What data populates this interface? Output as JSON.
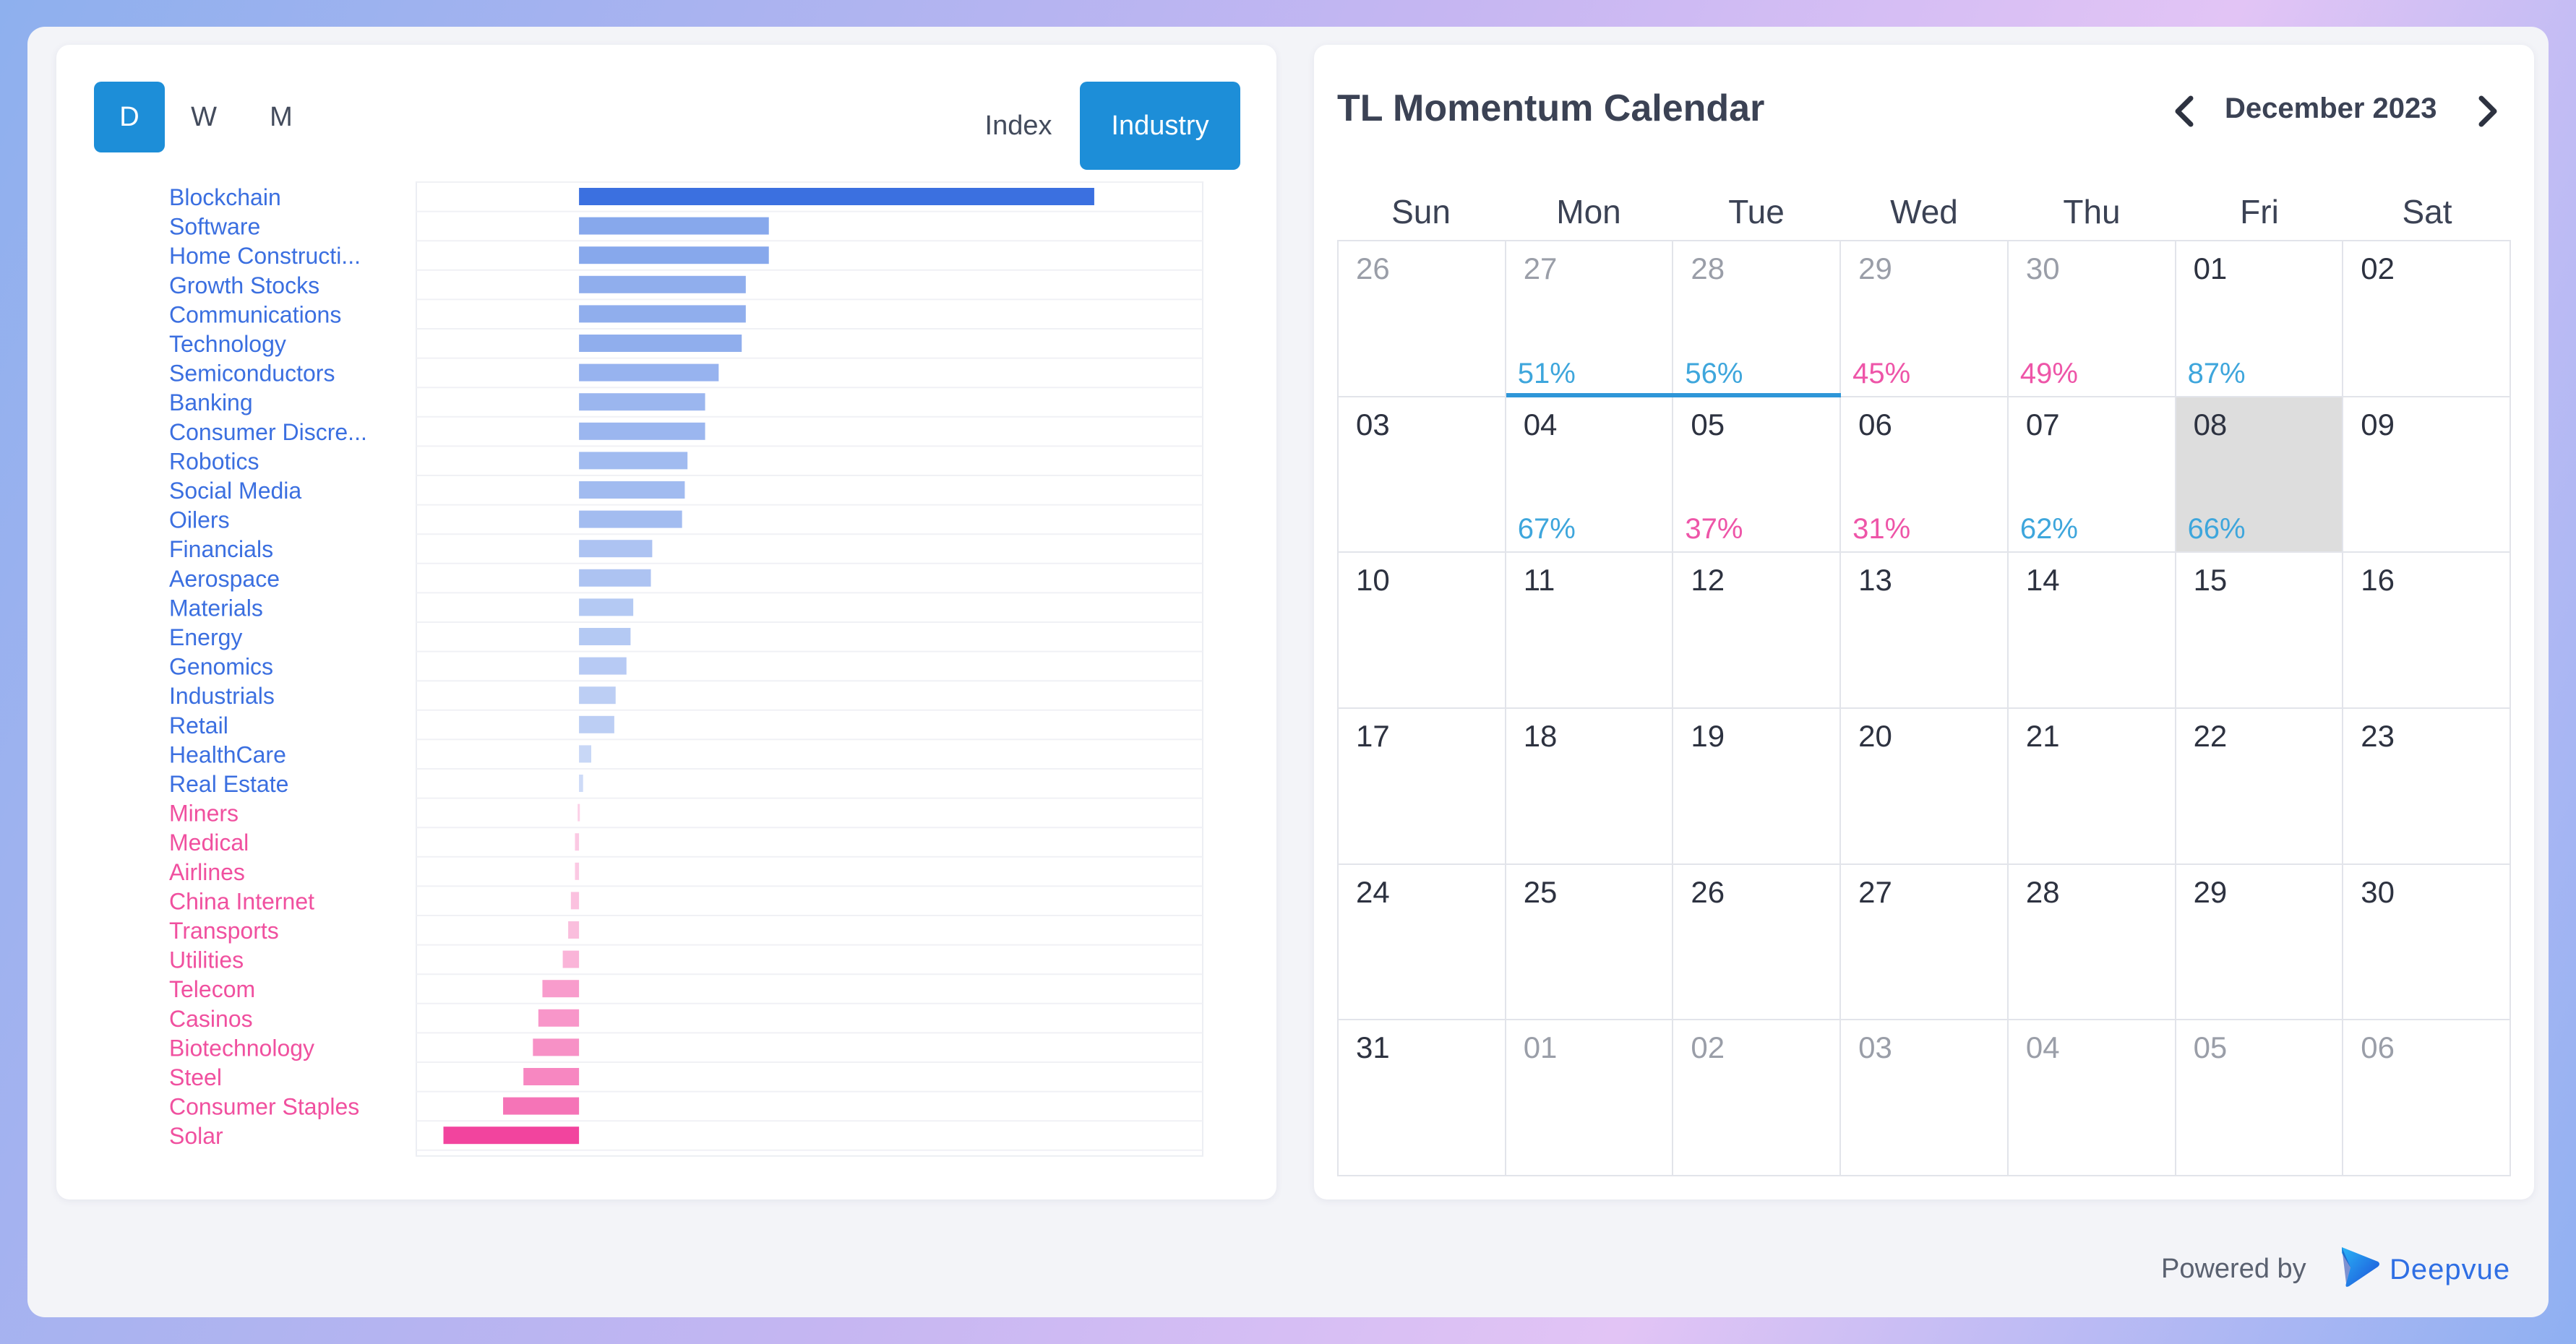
{
  "controls": {
    "periods": [
      "D",
      "W",
      "M"
    ],
    "active_period": "D",
    "types": [
      "Index",
      "Industry"
    ],
    "active_type": "Industry"
  },
  "chart_data": {
    "type": "bar",
    "orientation": "horizontal",
    "categories": [
      "Blockchain",
      "Software",
      "Home Constructi...",
      "Growth Stocks",
      "Communications",
      "Technology",
      "Semiconductors",
      "Banking",
      "Consumer Discre...",
      "Robotics",
      "Social Media",
      "Oilers",
      "Financials",
      "Aerospace",
      "Materials",
      "Energy",
      "Genomics",
      "Industrials",
      "Retail",
      "HealthCare",
      "Real Estate",
      "Miners",
      "Medical",
      "Airlines",
      "China Internet",
      "Transports",
      "Utilities",
      "Telecom",
      "Casinos",
      "Biotechnology",
      "Steel",
      "Consumer Staples",
      "Solar"
    ],
    "values": [
      3.8,
      1.4,
      1.4,
      1.23,
      1.23,
      1.2,
      1.03,
      0.93,
      0.93,
      0.8,
      0.78,
      0.76,
      0.54,
      0.53,
      0.4,
      0.38,
      0.35,
      0.27,
      0.26,
      0.09,
      0.03,
      -0.01,
      -0.03,
      -0.03,
      -0.06,
      -0.08,
      -0.12,
      -0.27,
      -0.3,
      -0.34,
      -0.41,
      -0.56,
      -1.0
    ],
    "xlim": [
      -1.2,
      4.6
    ],
    "grid": true,
    "positive_color": "#3b70e0",
    "negative_color": "#f2449e"
  },
  "calendar": {
    "title": "TL Momentum Calendar",
    "month_label": "December 2023",
    "weekdays": [
      "Sun",
      "Mon",
      "Tue",
      "Wed",
      "Thu",
      "Fri",
      "Sat"
    ],
    "weeks": [
      [
        {
          "day": "26",
          "other": true
        },
        {
          "day": "27",
          "other": true,
          "pct": "51%",
          "dir": "up",
          "underline": true
        },
        {
          "day": "28",
          "other": true,
          "pct": "56%",
          "dir": "up",
          "underline": true
        },
        {
          "day": "29",
          "other": true,
          "pct": "45%",
          "dir": "down"
        },
        {
          "day": "30",
          "other": true,
          "pct": "49%",
          "dir": "down"
        },
        {
          "day": "01",
          "pct": "87%",
          "dir": "up"
        },
        {
          "day": "02"
        }
      ],
      [
        {
          "day": "03"
        },
        {
          "day": "04",
          "pct": "67%",
          "dir": "up"
        },
        {
          "day": "05",
          "pct": "37%",
          "dir": "down"
        },
        {
          "day": "06",
          "pct": "31%",
          "dir": "down"
        },
        {
          "day": "07",
          "pct": "62%",
          "dir": "up"
        },
        {
          "day": "08",
          "pct": "66%",
          "dir": "up",
          "selected": true
        },
        {
          "day": "09"
        }
      ],
      [
        {
          "day": "10"
        },
        {
          "day": "11"
        },
        {
          "day": "12"
        },
        {
          "day": "13"
        },
        {
          "day": "14"
        },
        {
          "day": "15"
        },
        {
          "day": "16"
        }
      ],
      [
        {
          "day": "17"
        },
        {
          "day": "18"
        },
        {
          "day": "19"
        },
        {
          "day": "20"
        },
        {
          "day": "21"
        },
        {
          "day": "22"
        },
        {
          "day": "23"
        }
      ],
      [
        {
          "day": "24"
        },
        {
          "day": "25"
        },
        {
          "day": "26"
        },
        {
          "day": "27"
        },
        {
          "day": "28"
        },
        {
          "day": "29"
        },
        {
          "day": "30"
        }
      ],
      [
        {
          "day": "31"
        },
        {
          "day": "01",
          "other": true
        },
        {
          "day": "02",
          "other": true
        },
        {
          "day": "03",
          "other": true
        },
        {
          "day": "04",
          "other": true
        },
        {
          "day": "05",
          "other": true
        },
        {
          "day": "06",
          "other": true
        }
      ]
    ]
  },
  "footer": {
    "powered_by": "Powered by",
    "brand": "Deepvue",
    "brand_icon": "deepvue-logo-icon"
  }
}
